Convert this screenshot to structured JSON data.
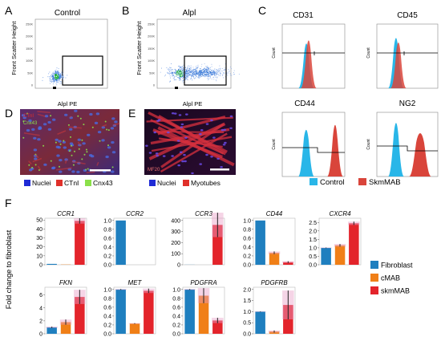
{
  "figure": {
    "panels": {
      "A": {
        "letter": "A",
        "title": "Control",
        "ylabel": "Front Scatter Height",
        "xlabel": "Alpl PE",
        "yticks": [
          "250K",
          "200K",
          "150K",
          "100K",
          "50K",
          "0"
        ]
      },
      "B": {
        "letter": "B",
        "title": "Alpl",
        "ylabel": "Front Scatter Height",
        "xlabel": "Alpl PE",
        "yticks": [
          "250K",
          "200K",
          "150K",
          "100K",
          "50K",
          "0"
        ]
      },
      "C": {
        "letter": "C",
        "histograms": [
          {
            "title": "CD31",
            "ylabel": "Count"
          },
          {
            "title": "CD45",
            "ylabel": "Count"
          },
          {
            "title": "CD44",
            "ylabel": "Count"
          },
          {
            "title": "NG2",
            "ylabel": "Count"
          }
        ],
        "legend": [
          {
            "label": "Control",
            "color": "#29b6e8"
          },
          {
            "label": "SkmMAB",
            "color": "#d9453b"
          }
        ]
      },
      "D": {
        "letter": "D",
        "overlay_top": "CTnI",
        "overlay_mid": "Cnx43",
        "legend": [
          {
            "label": "Nuclei",
            "color": "#1f2bd6"
          },
          {
            "label": "CTnI",
            "color": "#e0302a"
          },
          {
            "label": "Cnx43",
            "color": "#8be04a"
          }
        ]
      },
      "E": {
        "letter": "E",
        "overlay": "MF20",
        "legend": [
          {
            "label": "Nuclei",
            "color": "#1f2bd6"
          },
          {
            "label": "Myotubes",
            "color": "#e0302a"
          }
        ]
      },
      "F": {
        "letter": "F",
        "ylabel": "Fold change to fibroblast"
      }
    }
  },
  "chart_data": {
    "type": "bar",
    "categories": [
      "Fibroblast",
      "cMAB",
      "skmMAB"
    ],
    "colors": [
      "#1f7fbf",
      "#f07f17",
      "#e3242b"
    ],
    "ylabel": "Fold change to fibroblast",
    "legend": [
      "Fibroblast",
      "cMAB",
      "skmMAB"
    ],
    "legend_position": "right",
    "subplots": [
      {
        "title": "CCR1",
        "yticks": [
          "0",
          "10",
          "20",
          "30",
          "40",
          "50"
        ],
        "ylim": [
          0,
          52
        ],
        "values": [
          1,
          0.3,
          49
        ],
        "errors": [
          0,
          0,
          3
        ]
      },
      {
        "title": "CCR2",
        "yticks": [
          "0.0",
          "0.2",
          "0.4",
          "0.6",
          "0.8",
          "1.0"
        ],
        "ylim": [
          0,
          1.05
        ],
        "values": [
          1.0,
          0,
          0
        ],
        "errors": [
          0,
          0,
          0
        ]
      },
      {
        "title": "CCR3",
        "yticks": [
          "0",
          "100",
          "200",
          "300",
          "400"
        ],
        "ylim": [
          0,
          420
        ],
        "values": [
          1,
          0,
          360
        ],
        "errors": [
          0,
          0,
          110
        ]
      },
      {
        "title": "CD44",
        "yticks": [
          "0.0",
          "0.2",
          "0.4",
          "0.6",
          "0.8",
          "1.0"
        ],
        "ylim": [
          0,
          1.05
        ],
        "values": [
          1.0,
          0.27,
          0.06
        ],
        "errors": [
          0,
          0.03,
          0.02
        ]
      },
      {
        "title": "CXCR4",
        "yticks": [
          "0.0",
          "0.5",
          "1.0",
          "1.5",
          "2.0",
          "2.5"
        ],
        "ylim": [
          0,
          2.75
        ],
        "values": [
          1.0,
          1.15,
          2.45
        ],
        "errors": [
          0.02,
          0.08,
          0.1
        ]
      },
      {
        "title": "FKN",
        "yticks": [
          "0",
          "2",
          "4",
          "6"
        ],
        "ylim": [
          0,
          7.2
        ],
        "values": [
          1.0,
          1.8,
          5.7
        ],
        "errors": [
          0.1,
          0.4,
          1.1
        ]
      },
      {
        "title": "MET",
        "yticks": [
          "0.0",
          "0.2",
          "0.4",
          "0.6",
          "0.8",
          "1.0"
        ],
        "ylim": [
          0,
          1.05
        ],
        "values": [
          1.0,
          0.23,
          0.97
        ],
        "errors": [
          0.01,
          0.01,
          0.05
        ]
      },
      {
        "title": "PDGFRA",
        "yticks": [
          "0.0",
          "0.2",
          "0.4",
          "0.6",
          "0.8",
          "1.0"
        ],
        "ylim": [
          0,
          1.05
        ],
        "values": [
          1.0,
          0.86,
          0.3
        ],
        "errors": [
          0.01,
          0.17,
          0.06
        ]
      },
      {
        "title": "PDGFRB",
        "yticks": [
          "0.0",
          "0.5",
          "1.0",
          "1.5",
          "2.0"
        ],
        "ylim": [
          0,
          2.1
        ],
        "values": [
          1.0,
          0.1,
          1.3
        ],
        "errors": [
          0.01,
          0.05,
          0.65
        ]
      }
    ]
  }
}
